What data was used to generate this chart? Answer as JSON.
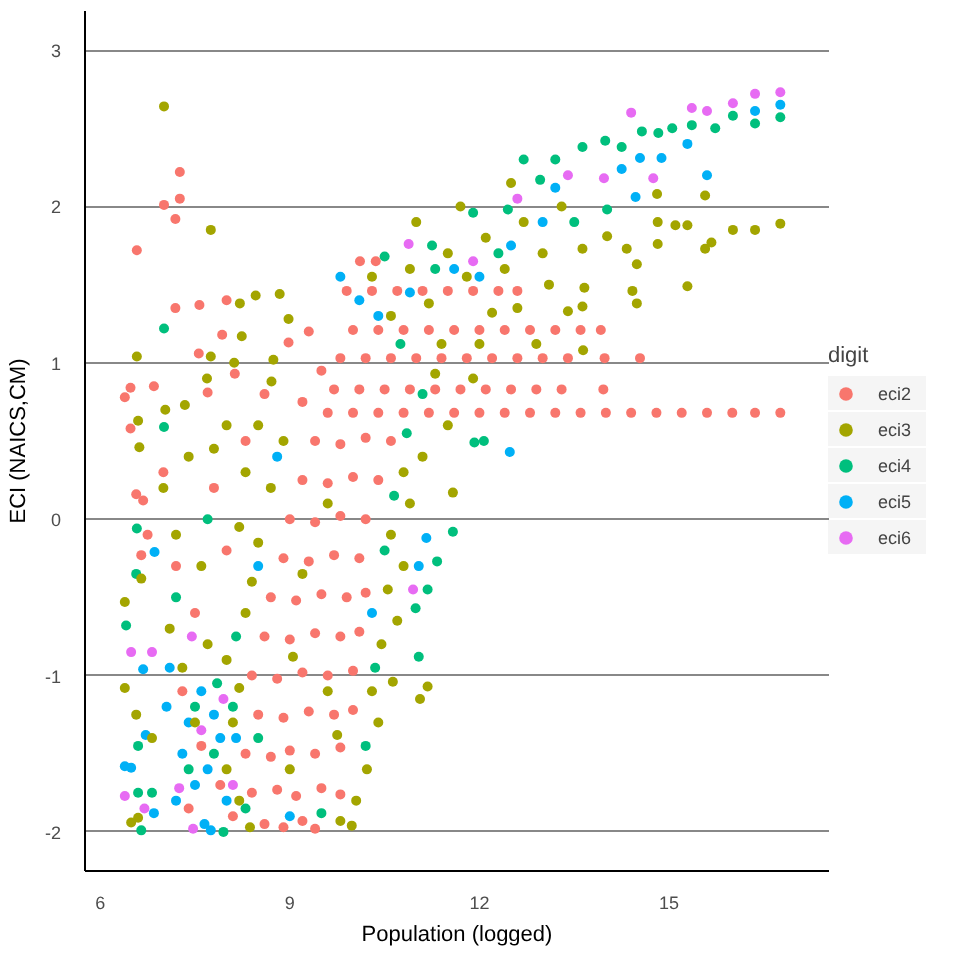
{
  "chart_data": {
    "type": "scatter",
    "xlabel": "Population (logged)",
    "ylabel": "ECI (NAICS,CM)",
    "legend_title": "digit",
    "xlim": [
      5.76,
      17.53
    ],
    "ylim": [
      -2.25,
      3.25
    ],
    "xticks": [
      6,
      9,
      12,
      15
    ],
    "yticks": [
      -2,
      -1,
      0,
      1,
      2,
      3
    ],
    "grid": "y",
    "legend": "right",
    "marker": "circle",
    "series": [
      {
        "name": "eci2",
        "color": "#f8766d",
        "x": [
          7.01,
          7.26,
          7.26,
          7.19,
          6.58,
          7.19,
          7.57,
          8.0,
          7.93,
          8.98,
          6.39,
          6.48,
          6.85,
          6.48,
          7.7,
          7.56,
          8.13,
          6.68,
          6.57,
          6.75,
          6.65,
          7.0,
          7.2,
          7.5,
          7.3,
          7.6,
          7.9,
          8.1,
          7.4,
          7.8,
          8.3,
          8.0,
          8.6,
          8.6,
          8.9,
          9.2,
          9.4,
          8.4,
          8.8,
          9.1,
          9.5,
          9.8,
          8.3,
          8.7,
          9.0,
          9.4,
          9.8,
          8.5,
          8.9,
          9.3,
          9.7,
          10.0,
          8.4,
          8.8,
          9.2,
          9.6,
          10.0,
          8.6,
          9.0,
          9.4,
          9.8,
          10.1,
          8.7,
          9.1,
          9.5,
          9.9,
          10.2,
          8.9,
          9.3,
          9.7,
          10.1,
          9.0,
          9.4,
          9.8,
          10.2,
          9.2,
          9.6,
          10.0,
          10.4,
          9.4,
          9.8,
          10.2,
          10.6,
          9.6,
          10.0,
          10.4,
          10.8,
          11.2,
          11.6,
          12.0,
          12.4,
          12.8,
          13.2,
          13.6,
          14.0,
          14.4,
          14.8,
          15.2,
          15.6,
          16.0,
          16.36,
          16.76,
          9.7,
          10.1,
          10.5,
          10.9,
          11.3,
          11.7,
          12.1,
          12.5,
          12.9,
          13.3,
          13.96,
          9.8,
          10.2,
          10.6,
          11.0,
          11.4,
          11.8,
          12.2,
          12.6,
          13.0,
          13.4,
          13.98,
          14.54,
          10.0,
          10.4,
          10.8,
          11.2,
          11.6,
          12.0,
          12.4,
          12.8,
          13.2,
          13.6,
          13.92,
          9.9,
          10.3,
          10.7,
          11.1,
          11.5,
          11.9,
          12.3,
          12.6,
          10.11,
          10.36,
          9.3,
          9.5,
          9.2
        ],
        "values": [
          2.01,
          2.05,
          2.22,
          1.92,
          1.72,
          1.35,
          1.37,
          1.4,
          1.18,
          1.13,
          0.78,
          0.84,
          0.85,
          0.58,
          0.81,
          1.06,
          0.93,
          0.12,
          0.16,
          -0.1,
          -0.23,
          0.3,
          -0.3,
          -0.6,
          -1.1,
          -1.45,
          -1.7,
          -1.9,
          -1.85,
          0.2,
          0.5,
          -0.2,
          0.8,
          -1.95,
          -1.97,
          -1.93,
          -1.98,
          -1.75,
          -1.73,
          -1.77,
          -1.72,
          -1.76,
          -1.5,
          -1.52,
          -1.48,
          -1.5,
          -1.46,
          -1.25,
          -1.27,
          -1.23,
          -1.25,
          -1.22,
          -1.0,
          -1.02,
          -0.98,
          -1.0,
          -0.97,
          -0.75,
          -0.77,
          -0.73,
          -0.75,
          -0.72,
          -0.5,
          -0.52,
          -0.48,
          -0.5,
          -0.47,
          -0.25,
          -0.27,
          -0.23,
          -0.25,
          0.0,
          -0.02,
          0.02,
          0.0,
          0.25,
          0.23,
          0.27,
          0.25,
          0.5,
          0.48,
          0.52,
          0.5,
          0.68,
          0.68,
          0.68,
          0.68,
          0.68,
          0.68,
          0.68,
          0.68,
          0.68,
          0.68,
          0.68,
          0.68,
          0.68,
          0.68,
          0.68,
          0.68,
          0.68,
          0.68,
          0.68,
          0.83,
          0.83,
          0.83,
          0.83,
          0.83,
          0.83,
          0.83,
          0.83,
          0.83,
          0.83,
          0.83,
          1.03,
          1.03,
          1.03,
          1.03,
          1.03,
          1.03,
          1.03,
          1.03,
          1.03,
          1.03,
          1.03,
          1.03,
          1.21,
          1.21,
          1.21,
          1.21,
          1.21,
          1.21,
          1.21,
          1.21,
          1.21,
          1.21,
          1.21,
          1.46,
          1.46,
          1.46,
          1.46,
          1.46,
          1.46,
          1.46,
          1.46,
          1.65,
          1.65,
          1.2,
          0.95,
          0.75
        ]
      },
      {
        "name": "eci3",
        "color": "#a3a500",
        "x": [
          7.01,
          7.75,
          8.84,
          8.46,
          8.98,
          8.21,
          8.24,
          8.74,
          8.12,
          6.58,
          6.6,
          7.03,
          7.34,
          7.69,
          7.75,
          8.71,
          6.62,
          6.39,
          6.39,
          6.49,
          6.6,
          6.65,
          6.57,
          6.82,
          7.0,
          7.2,
          7.4,
          7.6,
          7.8,
          8.0,
          8.2,
          7.1,
          7.3,
          7.5,
          7.7,
          8.0,
          8.3,
          8.5,
          8.4,
          8.37,
          9.8,
          9.98,
          8.2,
          10.05,
          8.0,
          10.22,
          8.1,
          10.4,
          8.2,
          10.3,
          10.63,
          8.3,
          10.45,
          10.7,
          8.5,
          10.55,
          10.8,
          8.7,
          10.6,
          10.9,
          8.9,
          10.8,
          11.1,
          9.0,
          9.6,
          9.2,
          9.6,
          9.05,
          9.75,
          10.6,
          10.9,
          11.2,
          11.5,
          11.8,
          12.1,
          12.4,
          12.7,
          13.0,
          13.3,
          13.63,
          13.66,
          13.63,
          13.4,
          13.64,
          12.2,
          11.4,
          12.6,
          11.0,
          11.7,
          12.5,
          10.3,
          12.9,
          13.1,
          11.3,
          14.02,
          14.33,
          14.49,
          14.49,
          14.42,
          14.82,
          14.82,
          15.1,
          15.29,
          15.29,
          15.57,
          15.67,
          16.01,
          16.36,
          16.76,
          15.57,
          14.81,
          11.58,
          11.06,
          11.18,
          11.5,
          11.9,
          12.0
        ],
        "values": [
          2.64,
          1.85,
          1.44,
          1.43,
          1.28,
          1.38,
          1.17,
          1.02,
          1.0,
          1.04,
          0.63,
          0.7,
          0.73,
          0.9,
          1.04,
          0.88,
          0.46,
          -0.53,
          -1.08,
          -1.94,
          -1.91,
          -0.38,
          -1.25,
          -1.4,
          0.2,
          -0.1,
          0.4,
          -0.3,
          0.45,
          0.6,
          -0.05,
          -0.7,
          -0.95,
          -1.3,
          -0.8,
          -0.9,
          0.3,
          0.6,
          -0.4,
          -1.97,
          -1.93,
          -1.96,
          -1.8,
          -1.8,
          -1.6,
          -1.6,
          -1.3,
          -1.3,
          -1.08,
          -1.1,
          -1.04,
          -0.6,
          -0.8,
          -0.65,
          -0.15,
          -0.45,
          -0.3,
          0.2,
          -0.1,
          0.1,
          0.5,
          0.3,
          0.4,
          -1.6,
          -1.1,
          -0.35,
          0.1,
          -0.88,
          -1.38,
          1.3,
          1.6,
          1.38,
          1.7,
          1.55,
          1.8,
          1.6,
          1.9,
          1.7,
          2.0,
          1.73,
          1.48,
          1.36,
          1.33,
          1.08,
          1.32,
          1.12,
          1.35,
          1.9,
          2.0,
          2.15,
          1.55,
          1.12,
          1.5,
          0.93,
          1.81,
          1.73,
          1.63,
          1.38,
          1.46,
          1.76,
          1.9,
          1.88,
          1.88,
          1.49,
          1.73,
          1.77,
          1.85,
          1.85,
          1.89,
          2.07,
          2.08,
          0.17,
          -1.15,
          -1.07,
          0.6,
          0.9,
          1.12
        ]
      },
      {
        "name": "eci4",
        "color": "#00bf7d",
        "x": [
          7.01,
          7.01,
          6.41,
          6.6,
          6.65,
          6.57,
          6.58,
          6.6,
          6.82,
          7.2,
          7.5,
          7.8,
          8.1,
          8.3,
          7.85,
          8.15,
          7.4,
          7.95,
          7.7,
          8.5,
          9.5,
          10.2,
          10.35,
          10.99,
          11.04,
          11.18,
          11.33,
          11.58,
          11.92,
          12.07,
          10.5,
          10.65,
          10.85,
          11.1,
          10.75,
          11.3,
          11.25,
          11.9,
          12.3,
          12.7,
          12.45,
          12.96,
          13.5,
          13.2,
          13.63,
          13.99,
          14.25,
          14.02,
          14.57,
          14.83,
          15.05,
          15.36,
          15.73,
          16.01,
          16.36,
          16.76,
          10.5
        ],
        "values": [
          1.22,
          0.59,
          -0.68,
          -1.75,
          -1.99,
          -0.35,
          -0.06,
          -1.45,
          -1.75,
          -0.5,
          -1.2,
          -1.5,
          -1.2,
          -1.85,
          -1.05,
          -0.75,
          -1.6,
          -2.0,
          0.0,
          -1.4,
          -1.88,
          -1.45,
          -0.95,
          -0.57,
          -0.88,
          -0.45,
          -0.27,
          -0.08,
          0.49,
          0.5,
          -0.2,
          0.15,
          0.55,
          0.8,
          1.12,
          1.6,
          1.75,
          1.96,
          1.7,
          2.3,
          1.98,
          2.17,
          1.9,
          2.3,
          2.38,
          2.42,
          2.38,
          1.98,
          2.48,
          2.47,
          2.5,
          2.52,
          2.5,
          2.58,
          2.53,
          2.57,
          1.68
        ]
      },
      {
        "name": "eci5",
        "color": "#00b0f6",
        "x": [
          6.39,
          6.49,
          6.85,
          6.72,
          6.68,
          6.86,
          7.3,
          7.5,
          7.4,
          7.7,
          7.65,
          7.75,
          7.9,
          8.0,
          7.6,
          8.15,
          7.2,
          7.8,
          7.05,
          7.1,
          8.5,
          8.8,
          10.3,
          11.04,
          11.16,
          12.48,
          10.4,
          10.9,
          11.6,
          12.0,
          12.5,
          13.0,
          13.2,
          14.25,
          14.47,
          14.54,
          14.88,
          15.29,
          15.6,
          16.36,
          16.76,
          9.8,
          10.1,
          9.0
        ],
        "values": [
          -1.58,
          -1.59,
          -1.88,
          -1.38,
          -0.96,
          -0.21,
          -1.5,
          -1.7,
          -1.3,
          -1.6,
          -1.95,
          -1.99,
          -1.4,
          -1.8,
          -1.1,
          -1.4,
          -1.8,
          -1.25,
          -1.2,
          -0.95,
          -0.3,
          0.4,
          -0.6,
          -0.3,
          -0.12,
          0.43,
          1.3,
          1.45,
          1.6,
          1.55,
          1.75,
          1.9,
          2.12,
          2.24,
          2.06,
          2.31,
          2.31,
          2.4,
          2.2,
          2.61,
          2.65,
          1.55,
          1.4,
          -1.9
        ]
      },
      {
        "name": "eci6",
        "color": "#e76bf3",
        "x": [
          6.49,
          6.39,
          6.7,
          6.82,
          7.47,
          7.25,
          7.6,
          7.95,
          10.95,
          8.1,
          7.45,
          10.88,
          14.4,
          16.36,
          16.76,
          16.01,
          15.36,
          15.6,
          14.75,
          13.97,
          12.6,
          11.9,
          13.4
        ],
        "values": [
          -0.85,
          -1.77,
          -1.85,
          -0.85,
          -1.98,
          -1.72,
          -1.35,
          -1.15,
          -0.45,
          -1.7,
          -0.75,
          1.76,
          2.6,
          2.72,
          2.73,
          2.66,
          2.63,
          2.61,
          2.18,
          2.18,
          2.05,
          1.65,
          2.2
        ]
      }
    ]
  }
}
